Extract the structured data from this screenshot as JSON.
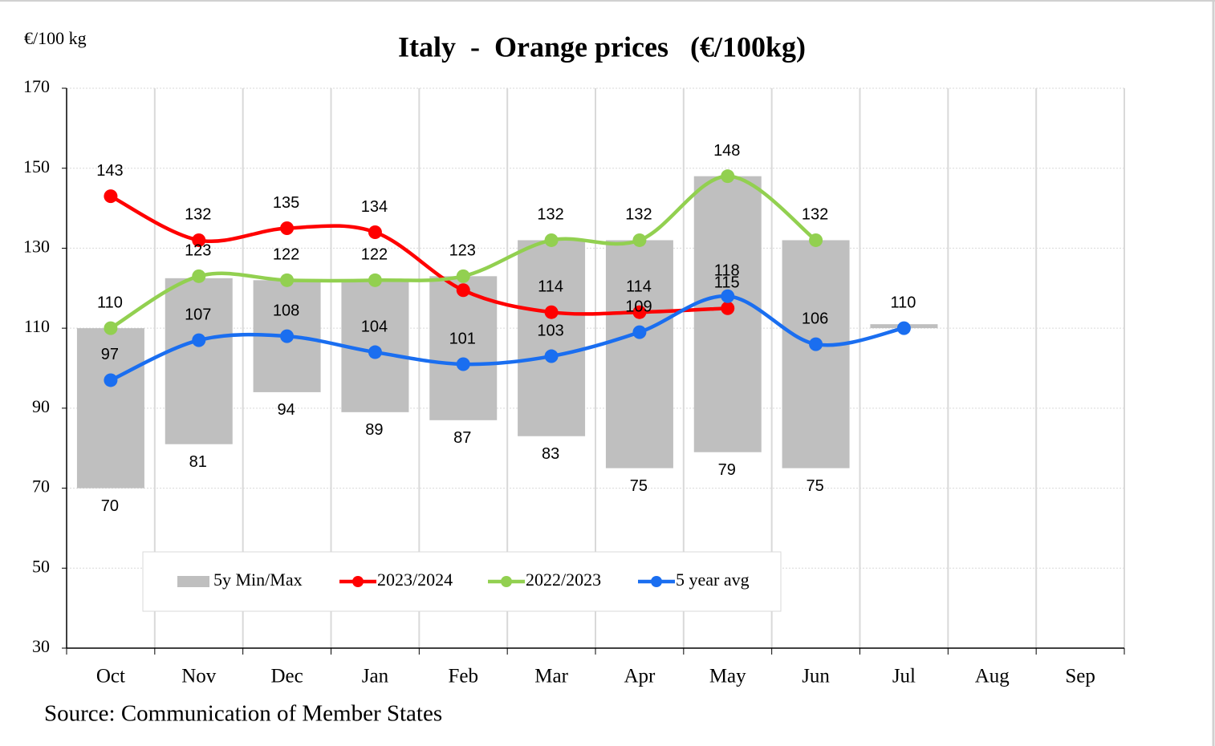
{
  "chart_data": {
    "type": "range-bar-line",
    "title": "Italy  -  Orange prices   (€/100kg)",
    "y_label": "€/100 kg",
    "source": "Source: Communication of Member States",
    "categories": [
      "Oct",
      "Nov",
      "Dec",
      "Jan",
      "Feb",
      "Mar",
      "Apr",
      "May",
      "Jun",
      "Jul",
      "Aug",
      "Sep"
    ],
    "ylim": [
      30,
      170
    ],
    "yticks": [
      30,
      50,
      70,
      90,
      110,
      130,
      150,
      170
    ],
    "grid": true,
    "legend": "bottom",
    "range": {
      "name": "5y Min/Max",
      "color": "#bfbfbf",
      "low": [
        70,
        81,
        94,
        89,
        87,
        83,
        75,
        79,
        75,
        110,
        null,
        null
      ],
      "high": [
        110,
        122.5,
        122,
        122,
        123,
        132,
        132,
        148,
        132,
        111,
        null,
        null
      ],
      "low_labels": [
        "70",
        "81",
        "94",
        "89",
        "87",
        "83",
        "75",
        "79",
        "75",
        null,
        null,
        null
      ]
    },
    "series": [
      {
        "name": "2023/2024",
        "color": "#ff0000",
        "values": [
          143,
          132,
          135,
          134,
          119.5,
          114,
          114,
          115,
          null,
          null,
          null,
          null
        ],
        "value_labels": [
          "143",
          "132",
          "135",
          "134",
          null,
          "114",
          "114",
          "115",
          null,
          null,
          null,
          null
        ]
      },
      {
        "name": "2022/2023",
        "color": "#92d050",
        "values": [
          110,
          123,
          122,
          122,
          123,
          132,
          132,
          148,
          132,
          null,
          null,
          null
        ]
      },
      {
        "name": "5 year avg",
        "color": "#1a6ef0",
        "values": [
          97,
          107,
          108,
          104,
          101,
          103,
          109,
          118,
          106,
          110,
          null,
          null
        ]
      }
    ]
  }
}
